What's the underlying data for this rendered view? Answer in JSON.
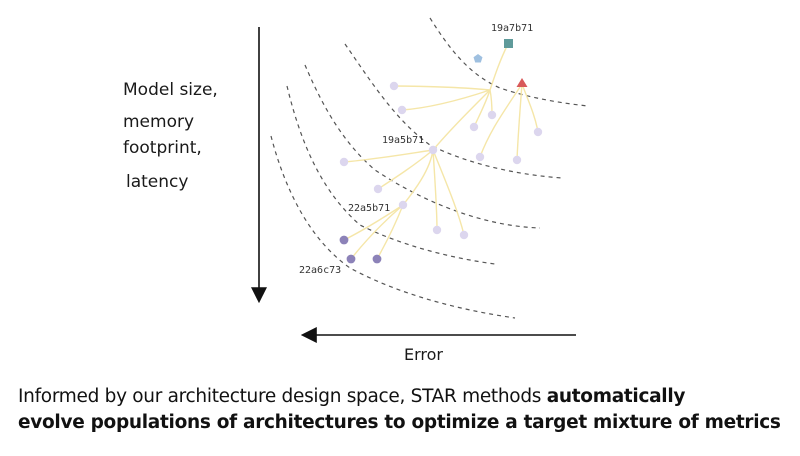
{
  "y_axis": {
    "label_lines": [
      "Model size,",
      "memory",
      "footprint,",
      "latency"
    ]
  },
  "x_axis": {
    "label": "Error"
  },
  "caption": {
    "regular": "Informed by our architecture design space, STAR methods ",
    "bold_line1": "automatically",
    "bold_line2": "evolve populations of architectures to optimize a target mixture of metrics"
  },
  "architectures": {
    "top": "19a7b71",
    "mid": "19a5b71",
    "lower": "22a5b71",
    "bottom": "22a6c73"
  },
  "colors": {
    "axis": "#111111",
    "frontier": "#555555",
    "branch": "#f5e6a8",
    "node_light": "#dcd6ee",
    "node_dark": "#8c82b8",
    "square": "#5f9a9a",
    "pentagon": "#9fc0e0",
    "triangle": "#d85a5a"
  }
}
